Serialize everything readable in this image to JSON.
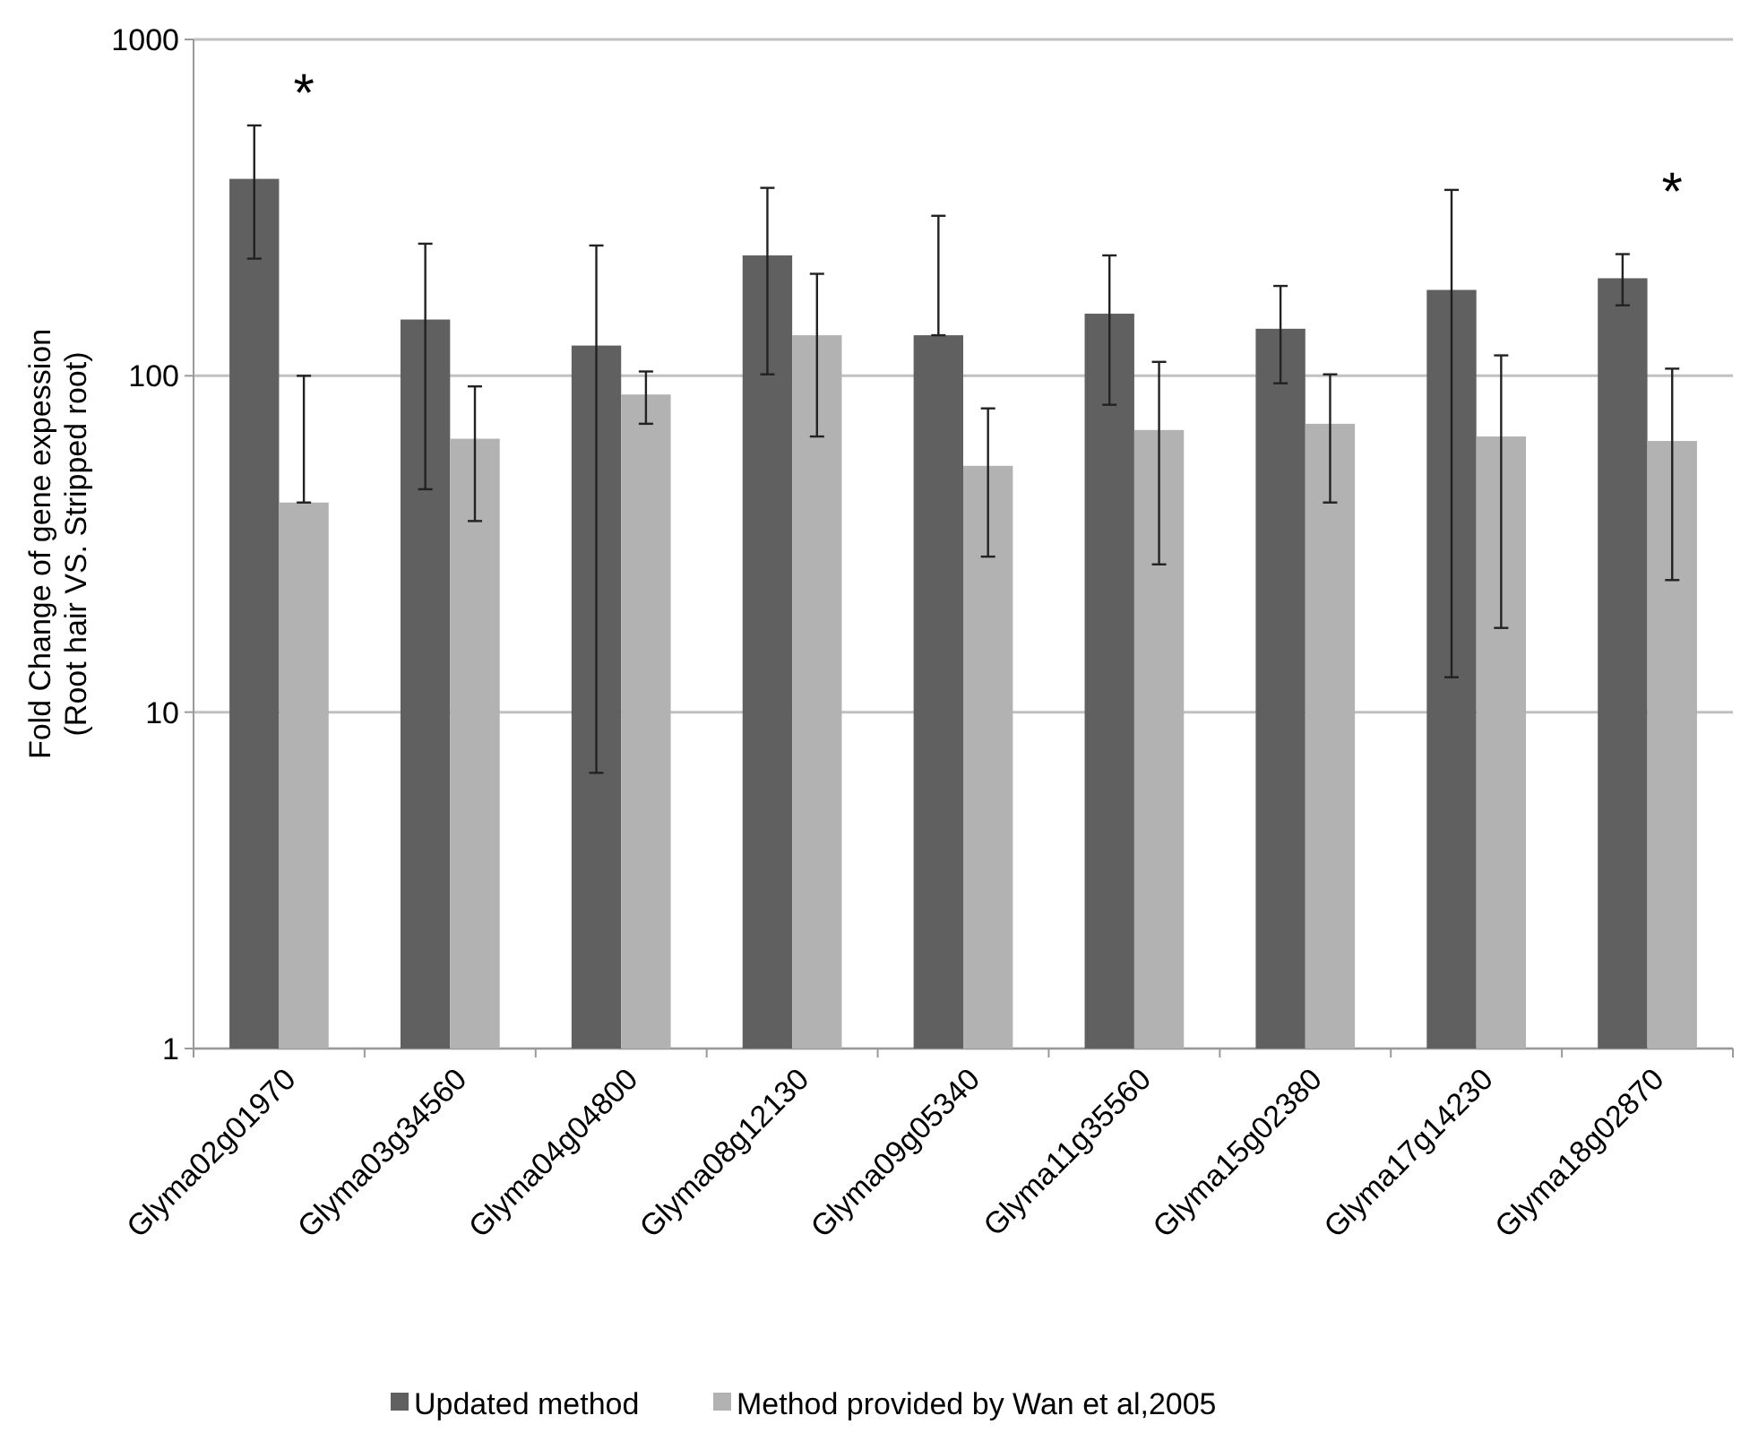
{
  "chart_data": {
    "type": "bar",
    "ylabel": "Fold Change of gene expession\n(Root hair VS. Stripped root)",
    "categories": [
      "Glyma02g01970",
      "Glyma03g34560",
      "Glyma04g04800",
      "Glyma08g12130",
      "Glyma09g05340",
      "Glyma11g35560",
      "Glyma15g02380",
      "Glyma17g14230",
      "Glyma18g02870"
    ],
    "series": [
      {
        "name": "Updated method",
        "color": "#606060",
        "values": [
          385,
          147,
          123,
          228,
          132,
          153,
          138,
          180,
          195
        ],
        "errors": [
          [
            223,
            555
          ],
          [
            46,
            247
          ],
          [
            6.6,
            244
          ],
          [
            101,
            362
          ],
          [
            132,
            299
          ],
          [
            82,
            228
          ],
          [
            95,
            185
          ],
          [
            12.7,
            357
          ],
          [
            162,
            230
          ]
        ]
      },
      {
        "name": "Method provided by Wan et al,2005",
        "color": "#b2b2b2",
        "values": [
          42,
          65,
          88,
          132,
          54,
          69,
          72,
          66,
          64
        ],
        "errors": [
          [
            42,
            100
          ],
          [
            37,
            93
          ],
          [
            72,
            103
          ],
          [
            66,
            201
          ],
          [
            29,
            80
          ],
          [
            27.5,
            110
          ],
          [
            42,
            101
          ],
          [
            17.8,
            115
          ],
          [
            24.7,
            105
          ]
        ]
      }
    ],
    "log": "y",
    "ylim": [
      1,
      1000
    ],
    "yticks": [
      1,
      10,
      100,
      1000
    ],
    "grid": "y",
    "legend": "bottom",
    "annotations": [
      "*",
      "*"
    ]
  }
}
